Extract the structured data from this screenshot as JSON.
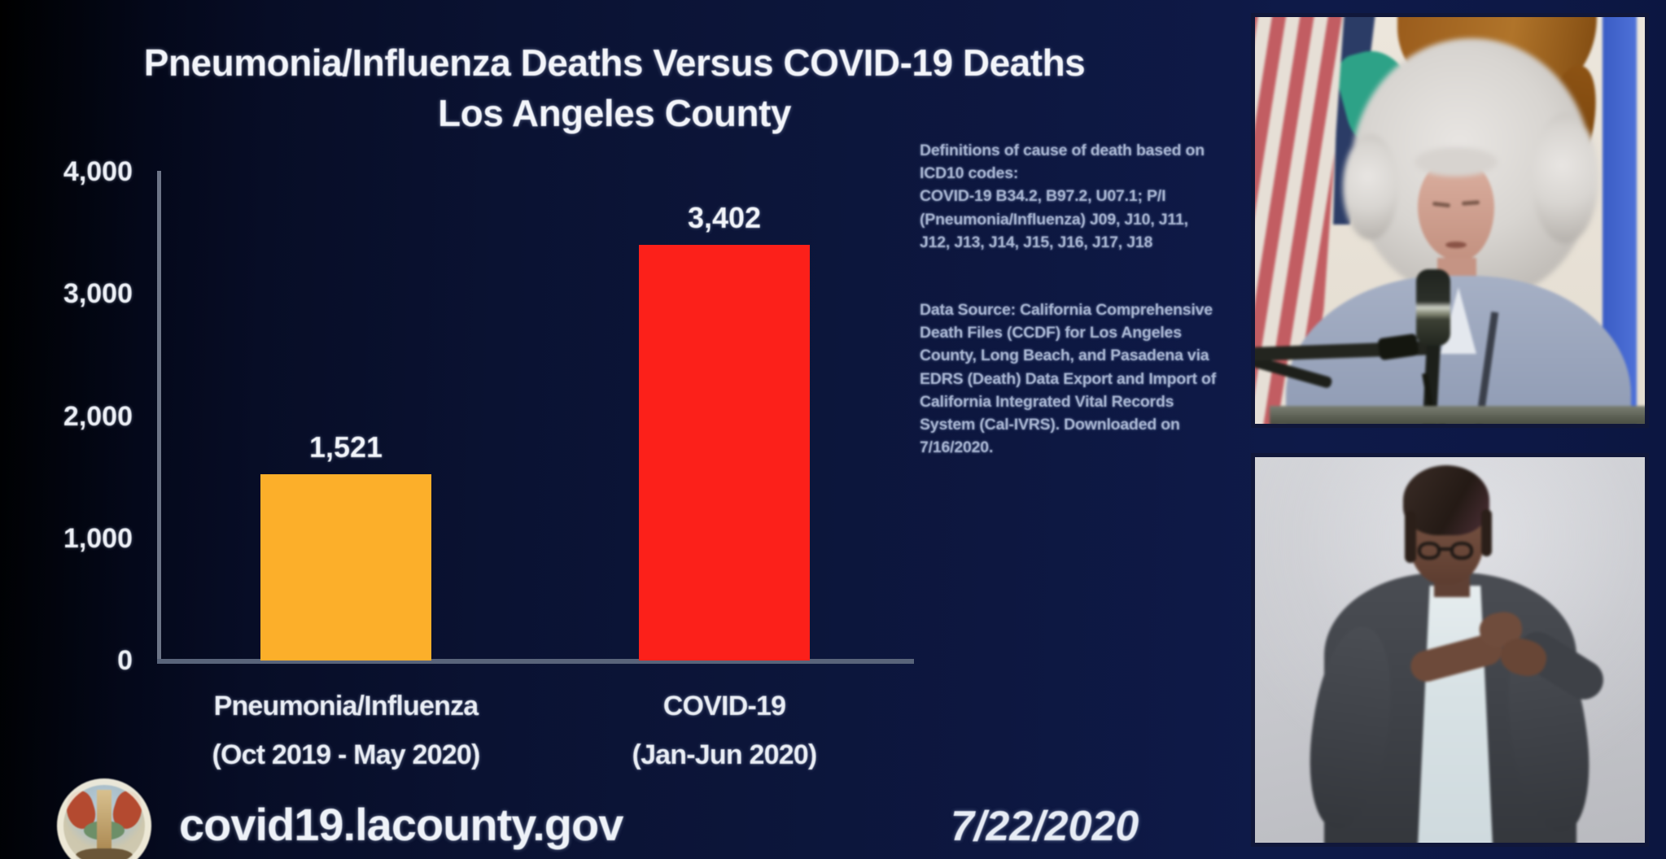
{
  "chart_data": {
    "type": "bar",
    "title": "Pneumonia/Influenza Deaths Versus COVID-19 Deaths",
    "subtitle": "Los Angeles County",
    "categories": [
      "Pneumonia/Influenza",
      "COVID-19"
    ],
    "category_sublabels": [
      "(Oct 2019 - May 2020)",
      "(Jan-Jun 2020)"
    ],
    "values": [
      1521,
      3402
    ],
    "value_labels": [
      "1,521",
      "3,402"
    ],
    "bar_colors": [
      "#fcaf2a",
      "#fc201a"
    ],
    "ylim": [
      0,
      4000
    ],
    "yticks": [
      0,
      1000,
      2000,
      3000,
      4000
    ],
    "ytick_labels": [
      "0",
      "1,000",
      "2,000",
      "3,000",
      "4,000"
    ],
    "grid": false,
    "legend": false
  },
  "notes": {
    "definitions": [
      "Definitions of cause of death based on",
      "ICD10 codes:",
      "COVID-19 B34.2, B97.2,  U07.1; P/I",
      "(Pneumonia/Influenza) J09, J10, J11,",
      "J12, J13, J14, J15, J16, J17, J18"
    ],
    "data_source": [
      "Data Source: California Comprehensive",
      "Death Files (CCDF) for Los Angeles",
      "County, Long Beach, and Pasadena via",
      "EDRS (Death) Data Export and Import of",
      "California Integrated Vital Records",
      "System (Cal-IVRS). Downloaded on",
      "7/16/2020."
    ]
  },
  "footer": {
    "url": "covid19.lacounty.gov",
    "date": "7/22/2020",
    "seal_icon": "la-county-seal-icon"
  }
}
